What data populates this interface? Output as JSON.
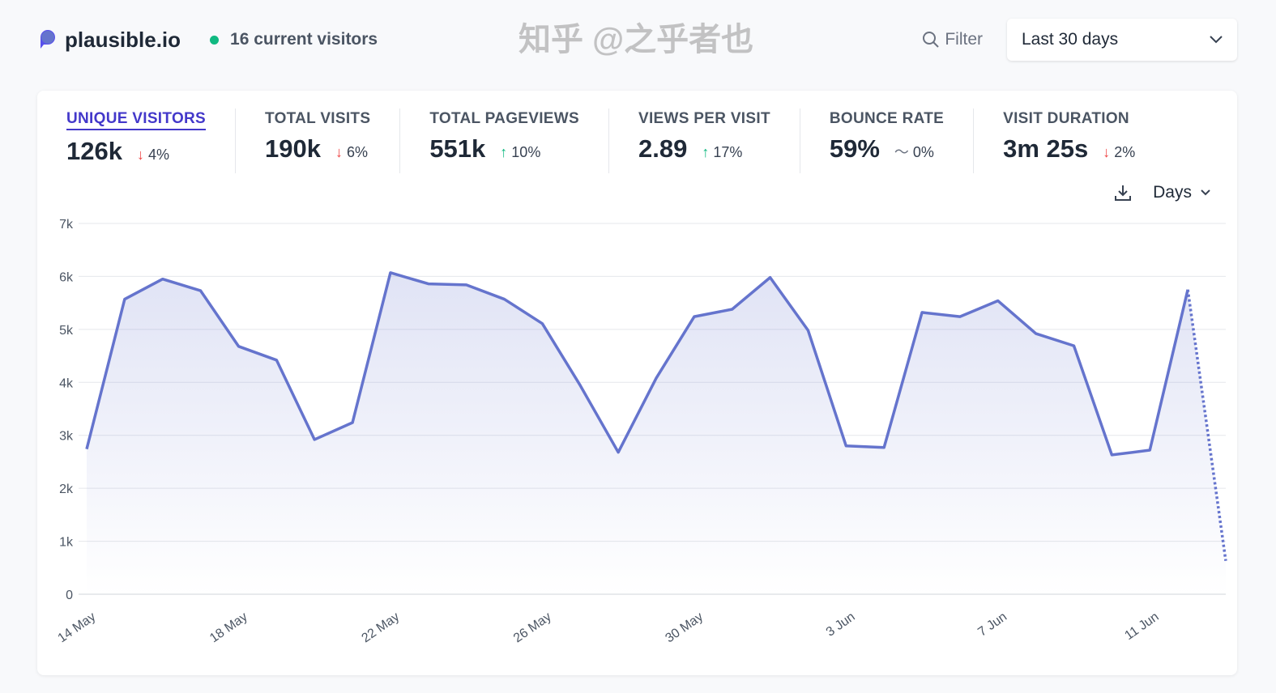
{
  "header": {
    "site": "plausible.io",
    "current_visitors": "16 current visitors",
    "filter_label": "Filter",
    "date_range": "Last 30 days"
  },
  "stats": [
    {
      "label": "UNIQUE VISITORS",
      "value": "126k",
      "change": "4%",
      "direction": "down",
      "active": true
    },
    {
      "label": "TOTAL VISITS",
      "value": "190k",
      "change": "6%",
      "direction": "down"
    },
    {
      "label": "TOTAL PAGEVIEWS",
      "value": "551k",
      "change": "10%",
      "direction": "up"
    },
    {
      "label": "VIEWS PER VISIT",
      "value": "2.89",
      "change": "17%",
      "direction": "up"
    },
    {
      "label": "BOUNCE RATE",
      "value": "59%",
      "change": "0%",
      "direction": "flat"
    },
    {
      "label": "VISIT DURATION",
      "value": "3m 25s",
      "change": "2%",
      "direction": "down"
    }
  ],
  "chart_controls": {
    "interval": "Days",
    "download_icon": "download-icon"
  },
  "colors": {
    "accent": "#4338ca",
    "line": "#6574cd",
    "up": "#10b981",
    "down": "#ef4444"
  },
  "watermark": "知乎 @之乎者也",
  "chart_data": {
    "type": "line",
    "ylim": [
      0,
      7000
    ],
    "yticks": [
      "0",
      "1k",
      "2k",
      "3k",
      "4k",
      "5k",
      "6k",
      "7k"
    ],
    "xtick_labels": [
      "14 May",
      "18 May",
      "22 May",
      "26 May",
      "30 May",
      "3 Jun",
      "7 Jun",
      "11 Jun"
    ],
    "x": [
      "14 May",
      "15 May",
      "16 May",
      "17 May",
      "18 May",
      "19 May",
      "20 May",
      "21 May",
      "22 May",
      "23 May",
      "24 May",
      "25 May",
      "26 May",
      "27 May",
      "28 May",
      "29 May",
      "30 May",
      "31 May",
      "1 Jun",
      "2 Jun",
      "3 Jun",
      "4 Jun",
      "5 Jun",
      "6 Jun",
      "7 Jun",
      "8 Jun",
      "9 Jun",
      "10 Jun",
      "11 Jun",
      "12 Jun",
      "13 Jun"
    ],
    "values": [
      2740,
      5570,
      5950,
      5730,
      4680,
      4420,
      2920,
      3240,
      6070,
      5860,
      5840,
      5570,
      5110,
      3940,
      2680,
      4080,
      5240,
      5380,
      5980,
      4980,
      2800,
      2770,
      5320,
      5240,
      5540,
      4920,
      4690,
      2630,
      2720,
      5750,
      630
    ],
    "last_point_partial": true,
    "grid": true
  }
}
